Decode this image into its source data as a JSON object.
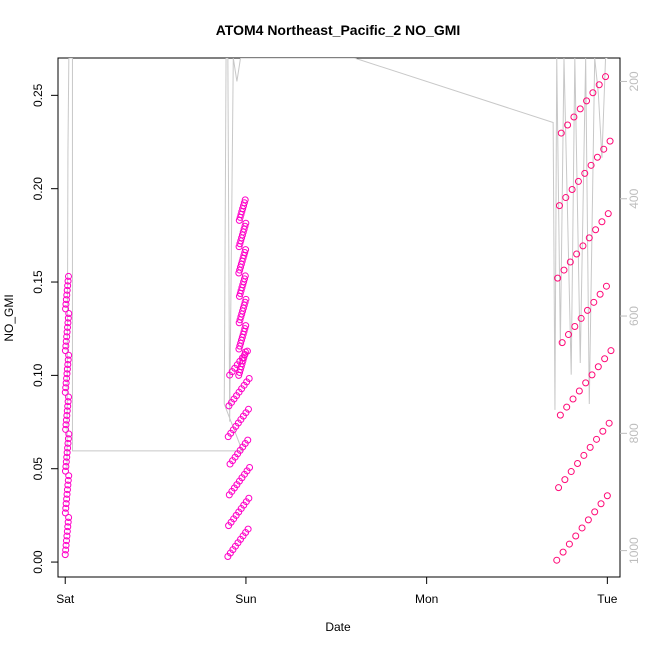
{
  "chart_data": {
    "type": "scatter",
    "title": "ATOM4 Northeast_Pacific_2 NO_GMI",
    "xlabel": "Date",
    "ylabel": "NO_GMI",
    "x_ticks": [
      "Sat",
      "Sun",
      "Mon",
      "Tue"
    ],
    "y_ticks": [
      "0.00",
      "0.05",
      "0.10",
      "0.15",
      "0.20",
      "0.25"
    ],
    "y_tick_values": [
      0.0,
      0.05,
      0.1,
      0.15,
      0.2,
      0.25
    ],
    "right_axis_ticks": [
      "200",
      "400",
      "600",
      "800",
      "1000"
    ],
    "right_axis_tick_values": [
      200,
      400,
      600,
      800,
      1000
    ],
    "xlim_days": [
      -0.04,
      3.07
    ],
    "ylim": [
      -0.008,
      0.27
    ],
    "right_axis_lim": [
      1045,
      160
    ],
    "grid": false,
    "series": [
      {
        "marker": "open-circle",
        "color": "#ff00c8",
        "segments": [
          {
            "x": [
              0.0,
              0.02
            ],
            "y": [
              0.004,
              0.153
            ]
          },
          {
            "x": [
              0.9,
              1.02
            ],
            "y": [
              0.003,
              0.113
            ]
          },
          {
            "x": [
              0.96,
              1.0
            ],
            "y": [
              0.1,
              0.194
            ]
          }
        ]
      },
      {
        "marker": "open-circle",
        "color": "#ff0a78",
        "segments": [
          {
            "x": [
              2.72,
              3.02
            ],
            "y": [
              0.001,
              0.26
            ]
          }
        ]
      },
      {
        "marker": "line",
        "color": "#c8c8c8",
        "axis": "right",
        "points": [
          [
            0.0,
            860
          ],
          [
            0.01,
            860
          ],
          [
            0.015,
            320
          ],
          [
            0.02,
            160
          ],
          [
            0.04,
            160
          ],
          [
            0.04,
            830
          ],
          [
            0.98,
            830
          ],
          [
            0.88,
            750
          ],
          [
            0.89,
            160
          ],
          [
            0.9,
            160
          ],
          [
            0.91,
            780
          ],
          [
            0.93,
            160
          ],
          [
            0.95,
            200
          ],
          [
            0.97,
            160
          ],
          [
            1.0,
            160
          ],
          [
            1.6,
            160
          ],
          [
            2.7,
            270
          ],
          [
            2.71,
            760
          ],
          [
            2.72,
            160
          ],
          [
            2.74,
            650
          ],
          [
            2.76,
            160
          ],
          [
            2.8,
            700
          ],
          [
            2.82,
            160
          ],
          [
            2.85,
            680
          ],
          [
            2.88,
            160
          ],
          [
            2.9,
            750
          ],
          [
            2.93,
            160
          ],
          [
            2.95,
            220
          ],
          [
            2.97,
            330
          ],
          [
            2.99,
            160
          ],
          [
            3.0,
            160
          ]
        ]
      }
    ]
  }
}
